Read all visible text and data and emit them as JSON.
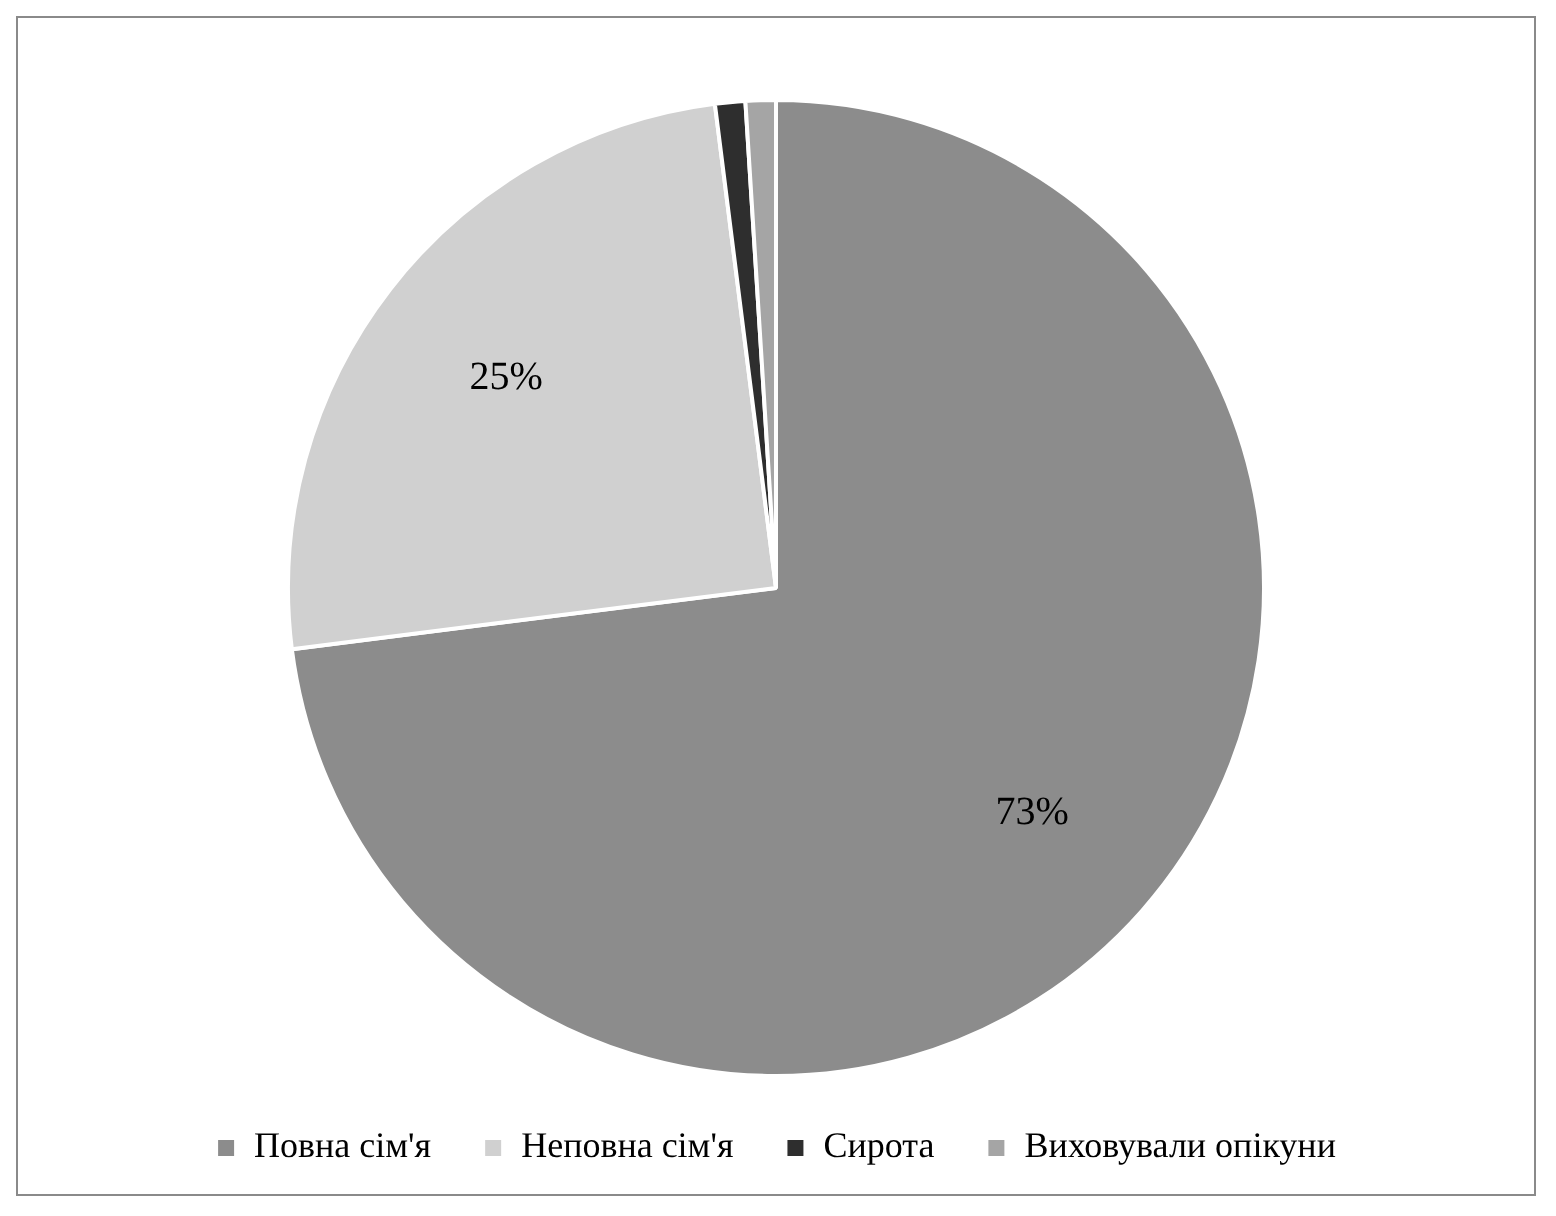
{
  "chart_data": {
    "type": "pie",
    "categories": [
      "Повна сім'я",
      "Неповна сім'я",
      "Сирота",
      "Виховували опікуни"
    ],
    "values": [
      73,
      25,
      1,
      1
    ],
    "colors": [
      "#8c8c8c",
      "#d0d0d0",
      "#2e2e2e",
      "#a5a5a5"
    ],
    "value_labels": [
      "73%",
      "25%",
      null,
      null
    ],
    "legend": "bottom"
  }
}
